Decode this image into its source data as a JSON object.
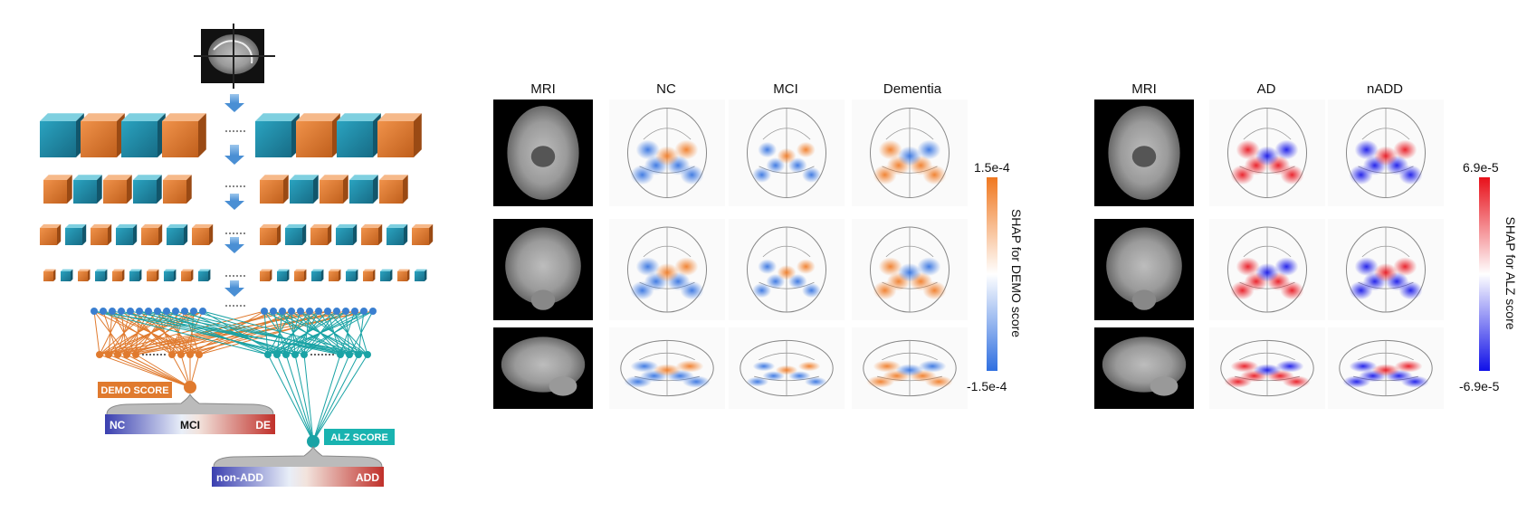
{
  "left_panel": {
    "demo_score": "DEMO SCORE",
    "alz_score": "ALZ SCORE",
    "demo_bar": {
      "left": "NC",
      "middle": "MCI",
      "right": "DE"
    },
    "alz_bar": {
      "left": "non-ADD",
      "right": "ADD"
    },
    "colors": {
      "orange": "#e07a2e",
      "teal": "#1a8fa8",
      "alz_box": "#19b3b0"
    }
  },
  "demo_panel": {
    "columns": [
      "MRI",
      "NC",
      "MCI",
      "Dementia"
    ],
    "colorbar": {
      "max": "1.5e-4",
      "min": "-1.5e-4",
      "label": "SHAP for DEMO score",
      "colors": {
        "pos": "#f07820",
        "neg": "#2f6fe0"
      }
    }
  },
  "alz_panel": {
    "columns": [
      "MRI",
      "AD",
      "nADD"
    ],
    "colorbar": {
      "max": "6.9e-5",
      "min": "-6.9e-5",
      "label": "SHAP for ALZ score",
      "colors": {
        "pos": "#e8101a",
        "neg": "#1010e8"
      }
    }
  }
}
